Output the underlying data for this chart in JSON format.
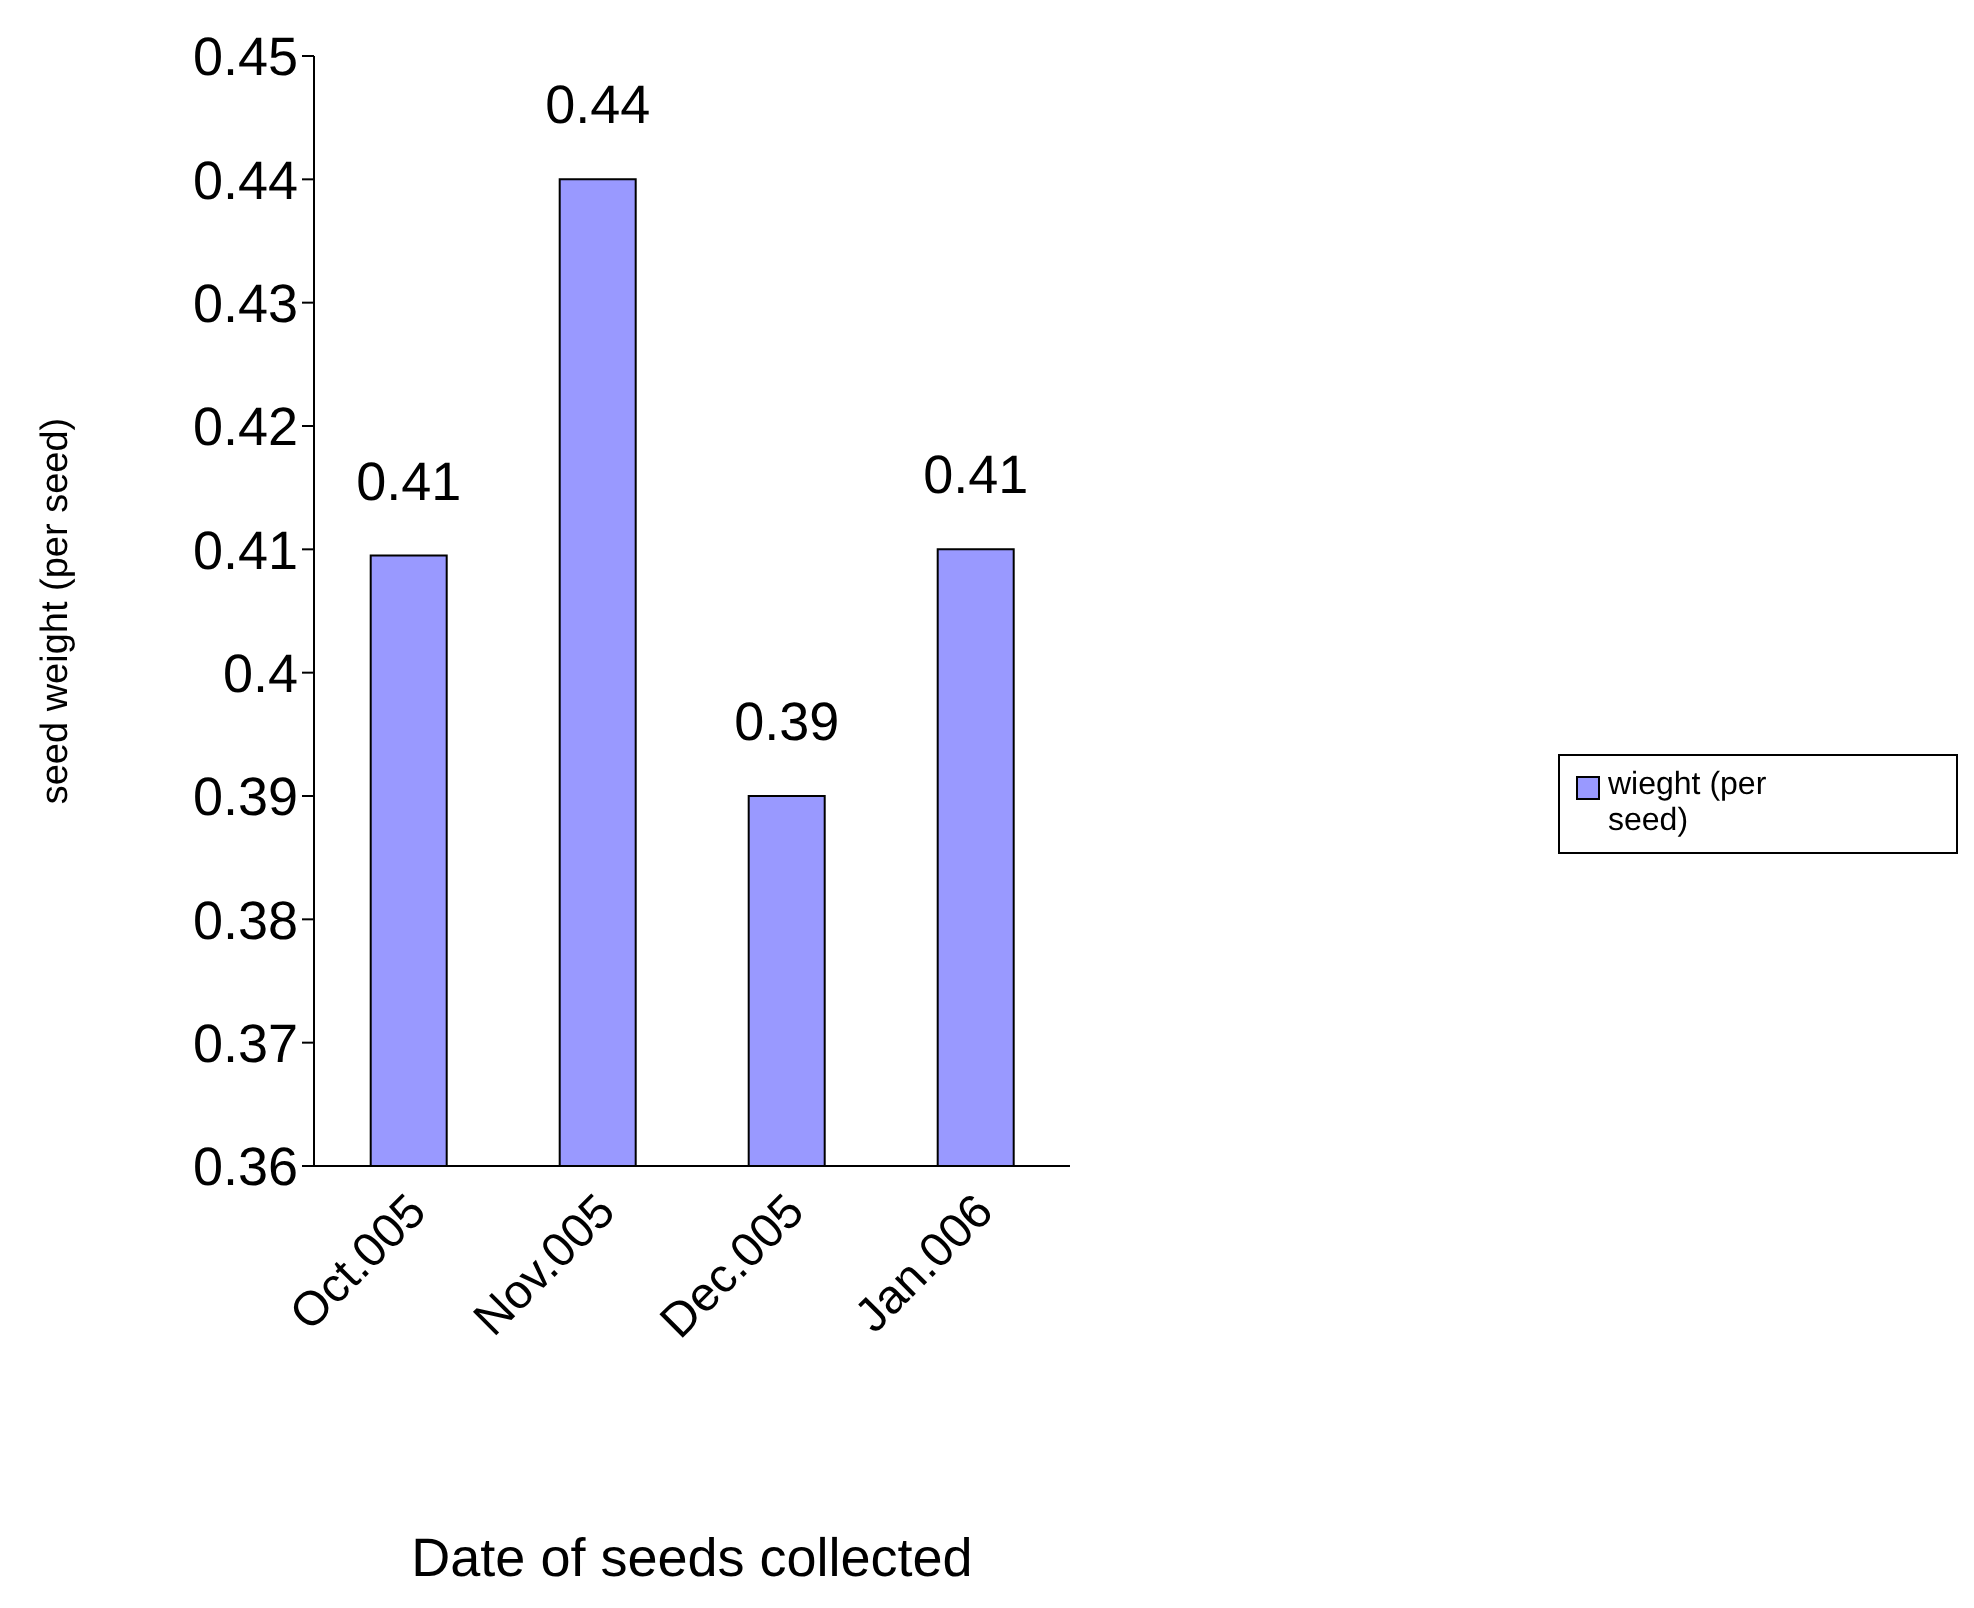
{
  "chart_data": {
    "type": "bar",
    "xlabel": "Date of seeds collected",
    "ylabel": "seed weight (per seed)",
    "categories": [
      "Oct.005",
      "Nov.005",
      "Dec.005",
      "Jan.006"
    ],
    "series": [
      {
        "name": "wieght (per seed)",
        "color": "#9999ff",
        "values": [
          0.4095,
          0.44,
          0.39,
          0.41
        ],
        "value_labels": [
          "0.41",
          "0.44",
          "0.39",
          "0.41"
        ]
      }
    ],
    "ylim": [
      0.36,
      0.45
    ],
    "yticks": [
      0.36,
      0.37,
      0.38,
      0.39,
      0.4,
      0.41,
      0.42,
      0.43,
      0.44,
      0.45
    ],
    "grid": false,
    "legend": "right"
  }
}
